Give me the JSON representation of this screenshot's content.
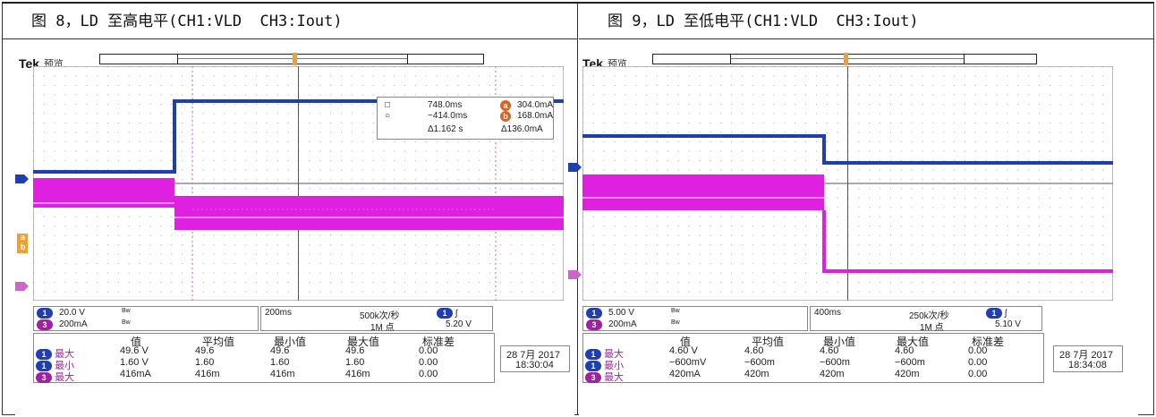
{
  "figures": [
    {
      "caption": "图 8，LD 至高电平(CH1:VLD  CH3:Iout)",
      "brand": "Tek",
      "preview_label": "预览",
      "cursor_readout": {
        "cur1_time": "748.0ms",
        "cur1_val": "304.0mA",
        "cur2_time": "−414.0ms",
        "cur2_val": "168.0mA",
        "delta_time": "Δ1.162 s",
        "delta_val": "Δ136.0mA",
        "cur_a": "a",
        "cur_b": "b"
      },
      "channels": [
        {
          "badge": "1",
          "scale": "20.0 V",
          "bw": "Bw"
        },
        {
          "badge": "3",
          "scale": "200mA",
          "bw": "Bw"
        }
      ],
      "timebase": "200ms",
      "sample_rate": "500k次/秒",
      "record_length": "1M 点",
      "trigger_level": "5.20 V",
      "meas_headers": [
        "值",
        "平均值",
        "最小值",
        "最大值",
        "标准差"
      ],
      "meas_rows": [
        {
          "badge": "1",
          "label": "最大",
          "vals": [
            "49.6 V",
            "49.6",
            "49.6",
            "49.6",
            "0.00"
          ]
        },
        {
          "badge": "1",
          "label": "最小",
          "vals": [
            "1.60 V",
            "1.60",
            "1.60",
            "1.60",
            "0.00"
          ]
        },
        {
          "badge": "3",
          "label": "最大",
          "vals": [
            "416mA",
            "416m",
            "416m",
            "416m",
            "0.00"
          ]
        }
      ],
      "date": "28 7月 2017",
      "time": "18:30:04",
      "colors": {
        "ch1": "#1f3fb0",
        "ch3": "#e020e0"
      }
    },
    {
      "caption": "图 9，LD 至低电平(CH1:VLD  CH3:Iout)",
      "brand": "Tek",
      "preview_label": "预览",
      "channels": [
        {
          "badge": "1",
          "scale": "5.00 V",
          "bw": "Bw"
        },
        {
          "badge": "3",
          "scale": "200mA",
          "bw": "Bw"
        }
      ],
      "timebase": "400ms",
      "sample_rate": "250k次/秒",
      "record_length": "1M 点",
      "trigger_level": "5.10 V",
      "meas_headers": [
        "值",
        "平均值",
        "最小值",
        "最大值",
        "标准差"
      ],
      "meas_rows": [
        {
          "badge": "1",
          "label": "最大",
          "vals": [
            "4.60 V",
            "4.60",
            "4.60",
            "4.60",
            "0.00"
          ]
        },
        {
          "badge": "1",
          "label": "最小",
          "vals": [
            "−600mV",
            "−600m",
            "−600m",
            "−600m",
            "0.00"
          ]
        },
        {
          "badge": "3",
          "label": "最大",
          "vals": [
            "420mA",
            "420m",
            "420m",
            "420m",
            "0.00"
          ]
        }
      ],
      "date": "28 7月 2017",
      "time": "18:34:08",
      "colors": {
        "ch1": "#1f3fb0",
        "ch3": "#e020e0"
      }
    }
  ]
}
